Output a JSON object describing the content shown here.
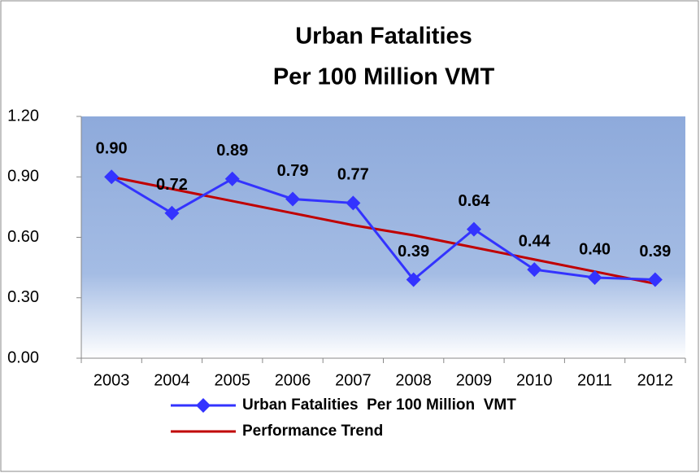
{
  "chart_data": {
    "type": "line",
    "title": [
      "Urban Fatalities",
      "Per 100 Million VMT"
    ],
    "categories": [
      "2003",
      "2004",
      "2005",
      "2006",
      "2007",
      "2008",
      "2009",
      "2010",
      "2011",
      "2012"
    ],
    "series": [
      {
        "name": "Urban Fatalities  Per 100 Million  VMT",
        "color": "#3333ff",
        "values": [
          0.9,
          0.72,
          0.89,
          0.79,
          0.77,
          0.39,
          0.64,
          0.44,
          0.4,
          0.39
        ],
        "value_labels": [
          "0.90",
          "0.72",
          "0.89",
          "0.79",
          "0.77",
          "0.39",
          "0.64",
          "0.44",
          "0.40",
          "0.39"
        ]
      },
      {
        "name": "Performance Trend",
        "color": "#c00000",
        "values": [
          0.9,
          0.84,
          0.78,
          0.72,
          0.66,
          0.61,
          0.55,
          0.49,
          0.43,
          0.37
        ]
      }
    ],
    "ylim": [
      0,
      1.2
    ],
    "yticks": [
      {
        "value": 0,
        "label": "0.00"
      },
      {
        "value": 0.3,
        "label": "0.30"
      },
      {
        "value": 0.6,
        "label": "0.60"
      },
      {
        "value": 0.9,
        "label": "0.90"
      },
      {
        "value": 1.2,
        "label": "1.20"
      }
    ],
    "legend": "bottom"
  }
}
